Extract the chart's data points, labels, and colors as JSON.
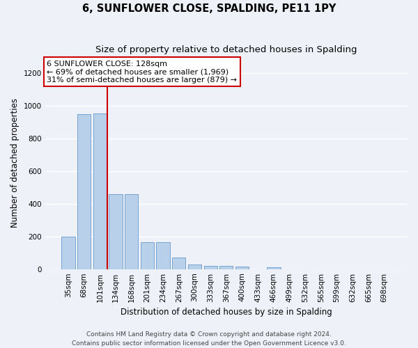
{
  "title": "6, SUNFLOWER CLOSE, SPALDING, PE11 1PY",
  "subtitle": "Size of property relative to detached houses in Spalding",
  "xlabel": "Distribution of detached houses by size in Spalding",
  "ylabel": "Number of detached properties",
  "footer_line1": "Contains HM Land Registry data © Crown copyright and database right 2024.",
  "footer_line2": "Contains public sector information licensed under the Open Government Licence v3.0.",
  "categories": [
    "35sqm",
    "68sqm",
    "101sqm",
    "134sqm",
    "168sqm",
    "201sqm",
    "234sqm",
    "267sqm",
    "300sqm",
    "333sqm",
    "367sqm",
    "400sqm",
    "433sqm",
    "466sqm",
    "499sqm",
    "532sqm",
    "565sqm",
    "599sqm",
    "632sqm",
    "665sqm",
    "698sqm"
  ],
  "values": [
    200,
    950,
    955,
    460,
    460,
    165,
    165,
    70,
    27,
    22,
    18,
    14,
    0,
    13,
    0,
    0,
    0,
    0,
    0,
    0,
    0
  ],
  "bar_color": "#b8d0ea",
  "bar_edge_color": "#6699cc",
  "ylim": [
    0,
    1300
  ],
  "yticks": [
    0,
    200,
    400,
    600,
    800,
    1000,
    1200
  ],
  "property_label": "6 SUNFLOWER CLOSE: 128sqm",
  "annotation_line1": "← 69% of detached houses are smaller (1,969)",
  "annotation_line2": "31% of semi-detached houses are larger (879) →",
  "vline_color": "#cc0000",
  "vline_x_index": 2.45,
  "annotation_box_color": "#ffffff",
  "annotation_box_edge": "#cc0000",
  "background_color": "#eef2f8",
  "grid_color": "#ffffff",
  "title_fontsize": 10.5,
  "subtitle_fontsize": 9.5,
  "axis_label_fontsize": 8.5,
  "tick_fontsize": 7.5,
  "footer_fontsize": 6.5,
  "annotation_fontsize": 8.0
}
